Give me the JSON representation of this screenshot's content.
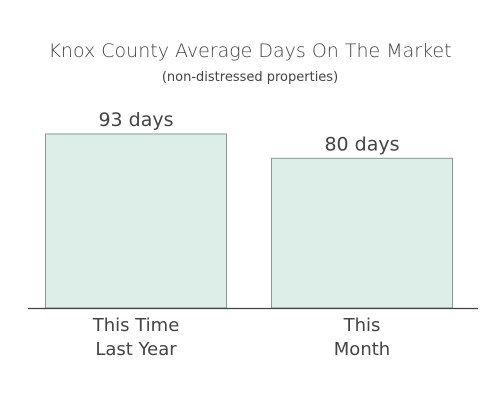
{
  "chart_data": {
    "type": "bar",
    "title": "Knox County Average Days On The Market",
    "subtitle": "(non-distressed properties)",
    "categories": [
      [
        "This Time",
        "Last Year"
      ],
      [
        "This",
        "Month"
      ]
    ],
    "values": [
      93,
      80
    ],
    "data_labels": [
      "93 days",
      "80 days"
    ],
    "ylim": [
      0,
      100
    ],
    "grid": false,
    "legend": "none",
    "colors": {
      "bar_fill": "#ddeee8",
      "bar_stroke": "#8a9a94",
      "axis": "#444444",
      "text": "#444444"
    }
  }
}
